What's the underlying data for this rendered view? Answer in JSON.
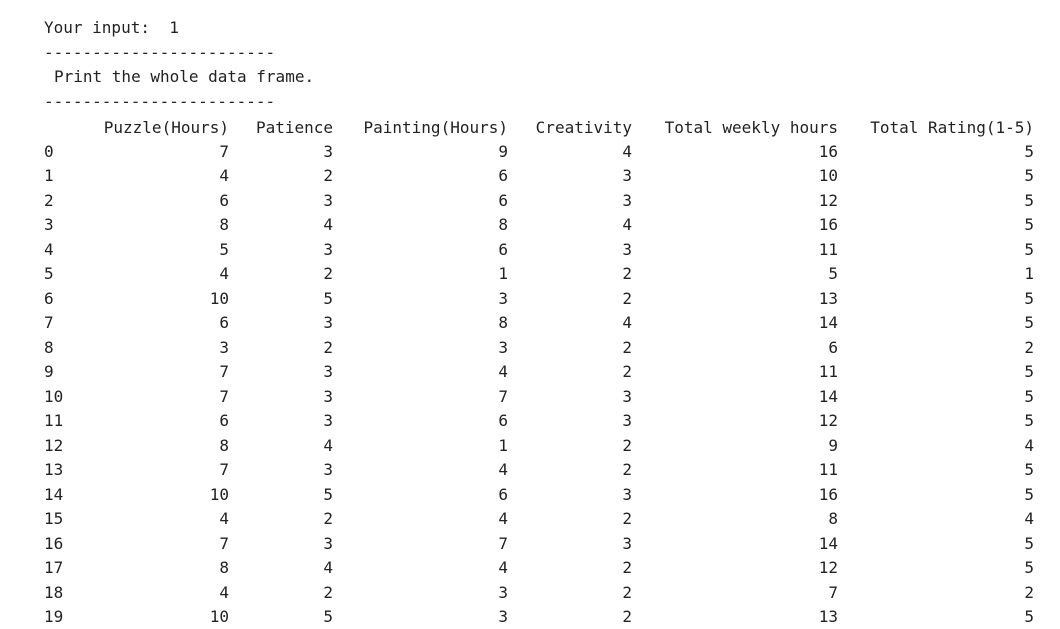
{
  "console": {
    "prompt_label": "Your input:",
    "prompt_value": "1",
    "separator": "------------------------",
    "message": "Print the whole data frame."
  },
  "dataframe": {
    "columns": [
      "Puzzle(Hours)",
      "Patience",
      "Painting(Hours)",
      "Creativity",
      "Total weekly hours",
      "Total Rating(1-5)"
    ],
    "rows": [
      [
        "0",
        "7",
        "3",
        "9",
        "4",
        "16",
        "5"
      ],
      [
        "1",
        "4",
        "2",
        "6",
        "3",
        "10",
        "5"
      ],
      [
        "2",
        "6",
        "3",
        "6",
        "3",
        "12",
        "5"
      ],
      [
        "3",
        "8",
        "4",
        "8",
        "4",
        "16",
        "5"
      ],
      [
        "4",
        "5",
        "3",
        "6",
        "3",
        "11",
        "5"
      ],
      [
        "5",
        "4",
        "2",
        "1",
        "2",
        "5",
        "1"
      ],
      [
        "6",
        "10",
        "5",
        "3",
        "2",
        "13",
        "5"
      ],
      [
        "7",
        "6",
        "3",
        "8",
        "4",
        "14",
        "5"
      ],
      [
        "8",
        "3",
        "2",
        "3",
        "2",
        "6",
        "2"
      ],
      [
        "9",
        "7",
        "3",
        "4",
        "2",
        "11",
        "5"
      ],
      [
        "10",
        "7",
        "3",
        "7",
        "3",
        "14",
        "5"
      ],
      [
        "11",
        "6",
        "3",
        "6",
        "3",
        "12",
        "5"
      ],
      [
        "12",
        "8",
        "4",
        "1",
        "2",
        "9",
        "4"
      ],
      [
        "13",
        "7",
        "3",
        "4",
        "2",
        "11",
        "5"
      ],
      [
        "14",
        "10",
        "5",
        "6",
        "3",
        "16",
        "5"
      ],
      [
        "15",
        "4",
        "2",
        "4",
        "2",
        "8",
        "4"
      ],
      [
        "16",
        "7",
        "3",
        "7",
        "3",
        "14",
        "5"
      ],
      [
        "17",
        "8",
        "4",
        "4",
        "2",
        "12",
        "5"
      ],
      [
        "18",
        "4",
        "2",
        "3",
        "2",
        "7",
        "2"
      ],
      [
        "19",
        "10",
        "5",
        "3",
        "2",
        "13",
        "5"
      ]
    ]
  }
}
